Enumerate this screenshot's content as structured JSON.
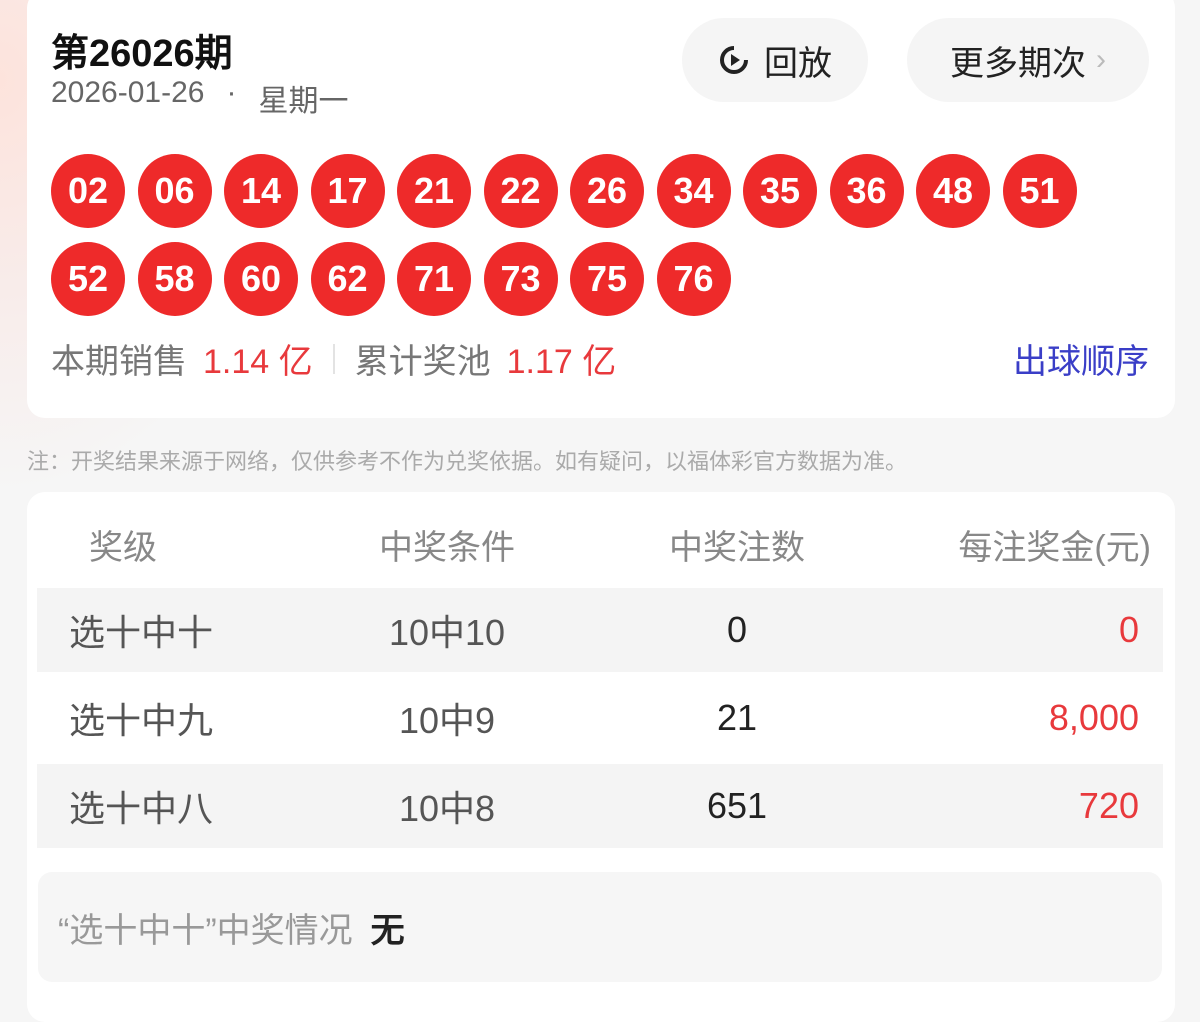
{
  "draw": {
    "title": "第26026期",
    "date": "2026-01-26",
    "dot": "·",
    "weekday": "星期一",
    "replay_label": "回放",
    "more_label": "更多期次",
    "more_chevron": "›",
    "numbers": [
      "02",
      "06",
      "14",
      "17",
      "21",
      "22",
      "26",
      "34",
      "35",
      "36",
      "48",
      "51",
      "52",
      "58",
      "60",
      "62",
      "71",
      "73",
      "75",
      "76"
    ],
    "sales_label": "本期销售",
    "sales_value": "1.14 亿",
    "pool_label": "累计奖池",
    "pool_value": "1.17 亿",
    "order_link": "出球顺序",
    "ball_color": "#ee2a2a"
  },
  "note": "注：开奖结果来源于网络，仅供参考不作为兑奖依据。如有疑问，以福体彩官方数据为准。",
  "prizes": {
    "headers": [
      "奖级",
      "中奖条件",
      "中奖注数",
      "每注奖金(元)"
    ],
    "rows": [
      {
        "level": "选十中十",
        "condition": "10中10",
        "count": "0",
        "amount": "0"
      },
      {
        "level": "选十中九",
        "condition": "10中9",
        "count": "21",
        "amount": "8,000"
      },
      {
        "level": "选十中八",
        "condition": "10中8",
        "count": "651",
        "amount": "720"
      }
    ],
    "summary_label": "“选十中十”中奖情况",
    "summary_value": "无"
  }
}
